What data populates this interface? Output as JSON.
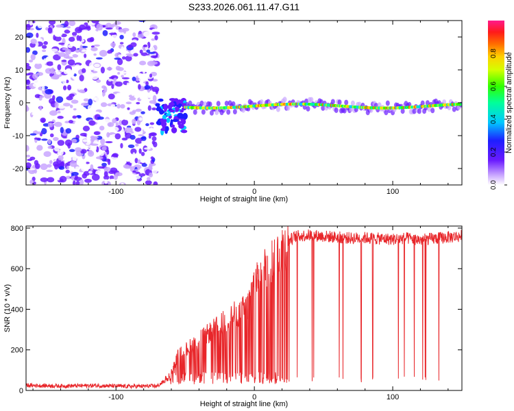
{
  "title": "S233.2026.061.11.47.G11",
  "chart_data": [
    {
      "type": "heatmap",
      "xlabel": "Height of straight line (km)",
      "ylabel": "Frequency (Hz)",
      "xlim": [
        -165,
        150
      ],
      "ylim": [
        -25,
        25
      ],
      "xticks": [
        -100,
        0,
        100
      ],
      "yticks": [
        -20,
        -10,
        0,
        10,
        20
      ],
      "colorbar": {
        "label": "Normalized spectral amplitude",
        "range": [
          0,
          1
        ],
        "ticks": [
          0.0,
          0.2,
          0.4,
          0.6,
          0.8
        ]
      },
      "regions": [
        {
          "kind": "noise",
          "x_range": [
            -165,
            -70
          ],
          "freq_range": [
            -25,
            25
          ],
          "amplitude": "low-mid scattered"
        },
        {
          "kind": "transition",
          "x_range": [
            -70,
            -50
          ],
          "freq_center": -4,
          "amplitude": "mid"
        },
        {
          "kind": "carrier line",
          "x_range": [
            -50,
            150
          ],
          "freq_center": -1,
          "amplitude": "high"
        }
      ]
    },
    {
      "type": "line",
      "xlabel": "Height of straight line (km)",
      "ylabel": "SNR (10 * v/v)",
      "xlim": [
        -165,
        150
      ],
      "ylim": [
        0,
        810
      ],
      "xticks": [
        -100,
        0,
        100
      ],
      "yticks": [
        0,
        200,
        400,
        600,
        800
      ],
      "series": [
        {
          "name": "SNR",
          "color": "#e8262a",
          "x": [
            -165,
            -140,
            -115,
            -90,
            -70,
            -62,
            -55,
            -45,
            -35,
            -25,
            -15,
            -5,
            0,
            5,
            10,
            15,
            20,
            25,
            30,
            40,
            50,
            60,
            70,
            80,
            90,
            100,
            110,
            120,
            130,
            140,
            150
          ],
          "values": [
            25,
            22,
            24,
            20,
            22,
            60,
            180,
            230,
            280,
            330,
            380,
            420,
            560,
            600,
            640,
            680,
            720,
            740,
            760,
            765,
            760,
            755,
            750,
            752,
            748,
            745,
            750,
            742,
            748,
            755,
            760
          ]
        }
      ]
    }
  ]
}
